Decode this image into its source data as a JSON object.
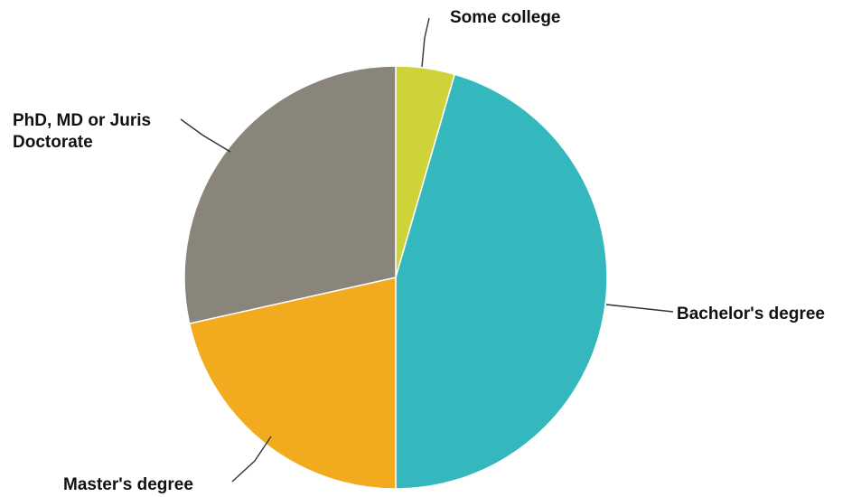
{
  "chart_data": {
    "type": "pie",
    "title": "",
    "start_angle_deg": 0,
    "direction": "clockwise",
    "slices": [
      {
        "label": [
          "Some college"
        ],
        "value": 4.5,
        "color": "#cfd33a"
      },
      {
        "label": [
          "Bachelor's degree"
        ],
        "value": 45.5,
        "color": "#34b8bd"
      },
      {
        "label": [
          "Master's degree"
        ],
        "value": 21.5,
        "color": "#f2ab1f"
      },
      {
        "label": [
          "PhD, MD or Juris",
          "Doctorate"
        ],
        "value": 28.5,
        "color": "#8a857b"
      }
    ]
  }
}
